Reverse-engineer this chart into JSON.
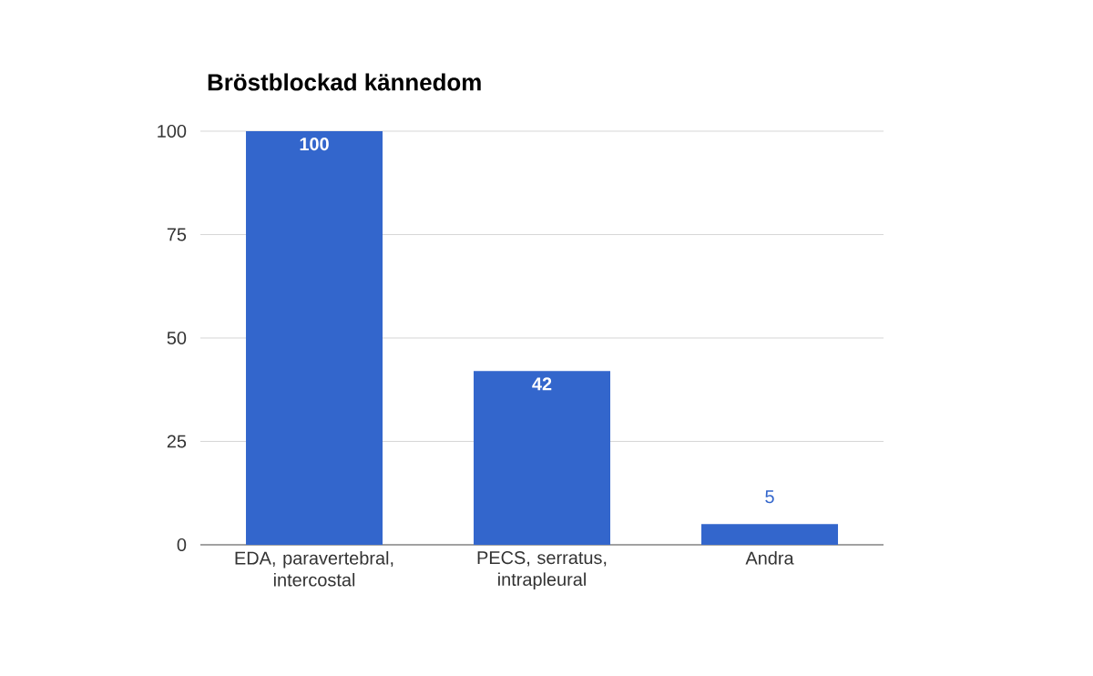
{
  "chart_data": {
    "type": "bar",
    "title": "Bröstblockad kännedom",
    "categories": [
      "EDA, paravertebral, intercostal",
      "PECS, serratus, intrapleural",
      "Andra"
    ],
    "values": [
      100,
      42,
      5
    ],
    "color": "#3366cc",
    "ylim": [
      0,
      100
    ],
    "yticks": [
      0,
      25,
      50,
      75,
      100
    ],
    "grid": "y",
    "data_labels": true
  }
}
